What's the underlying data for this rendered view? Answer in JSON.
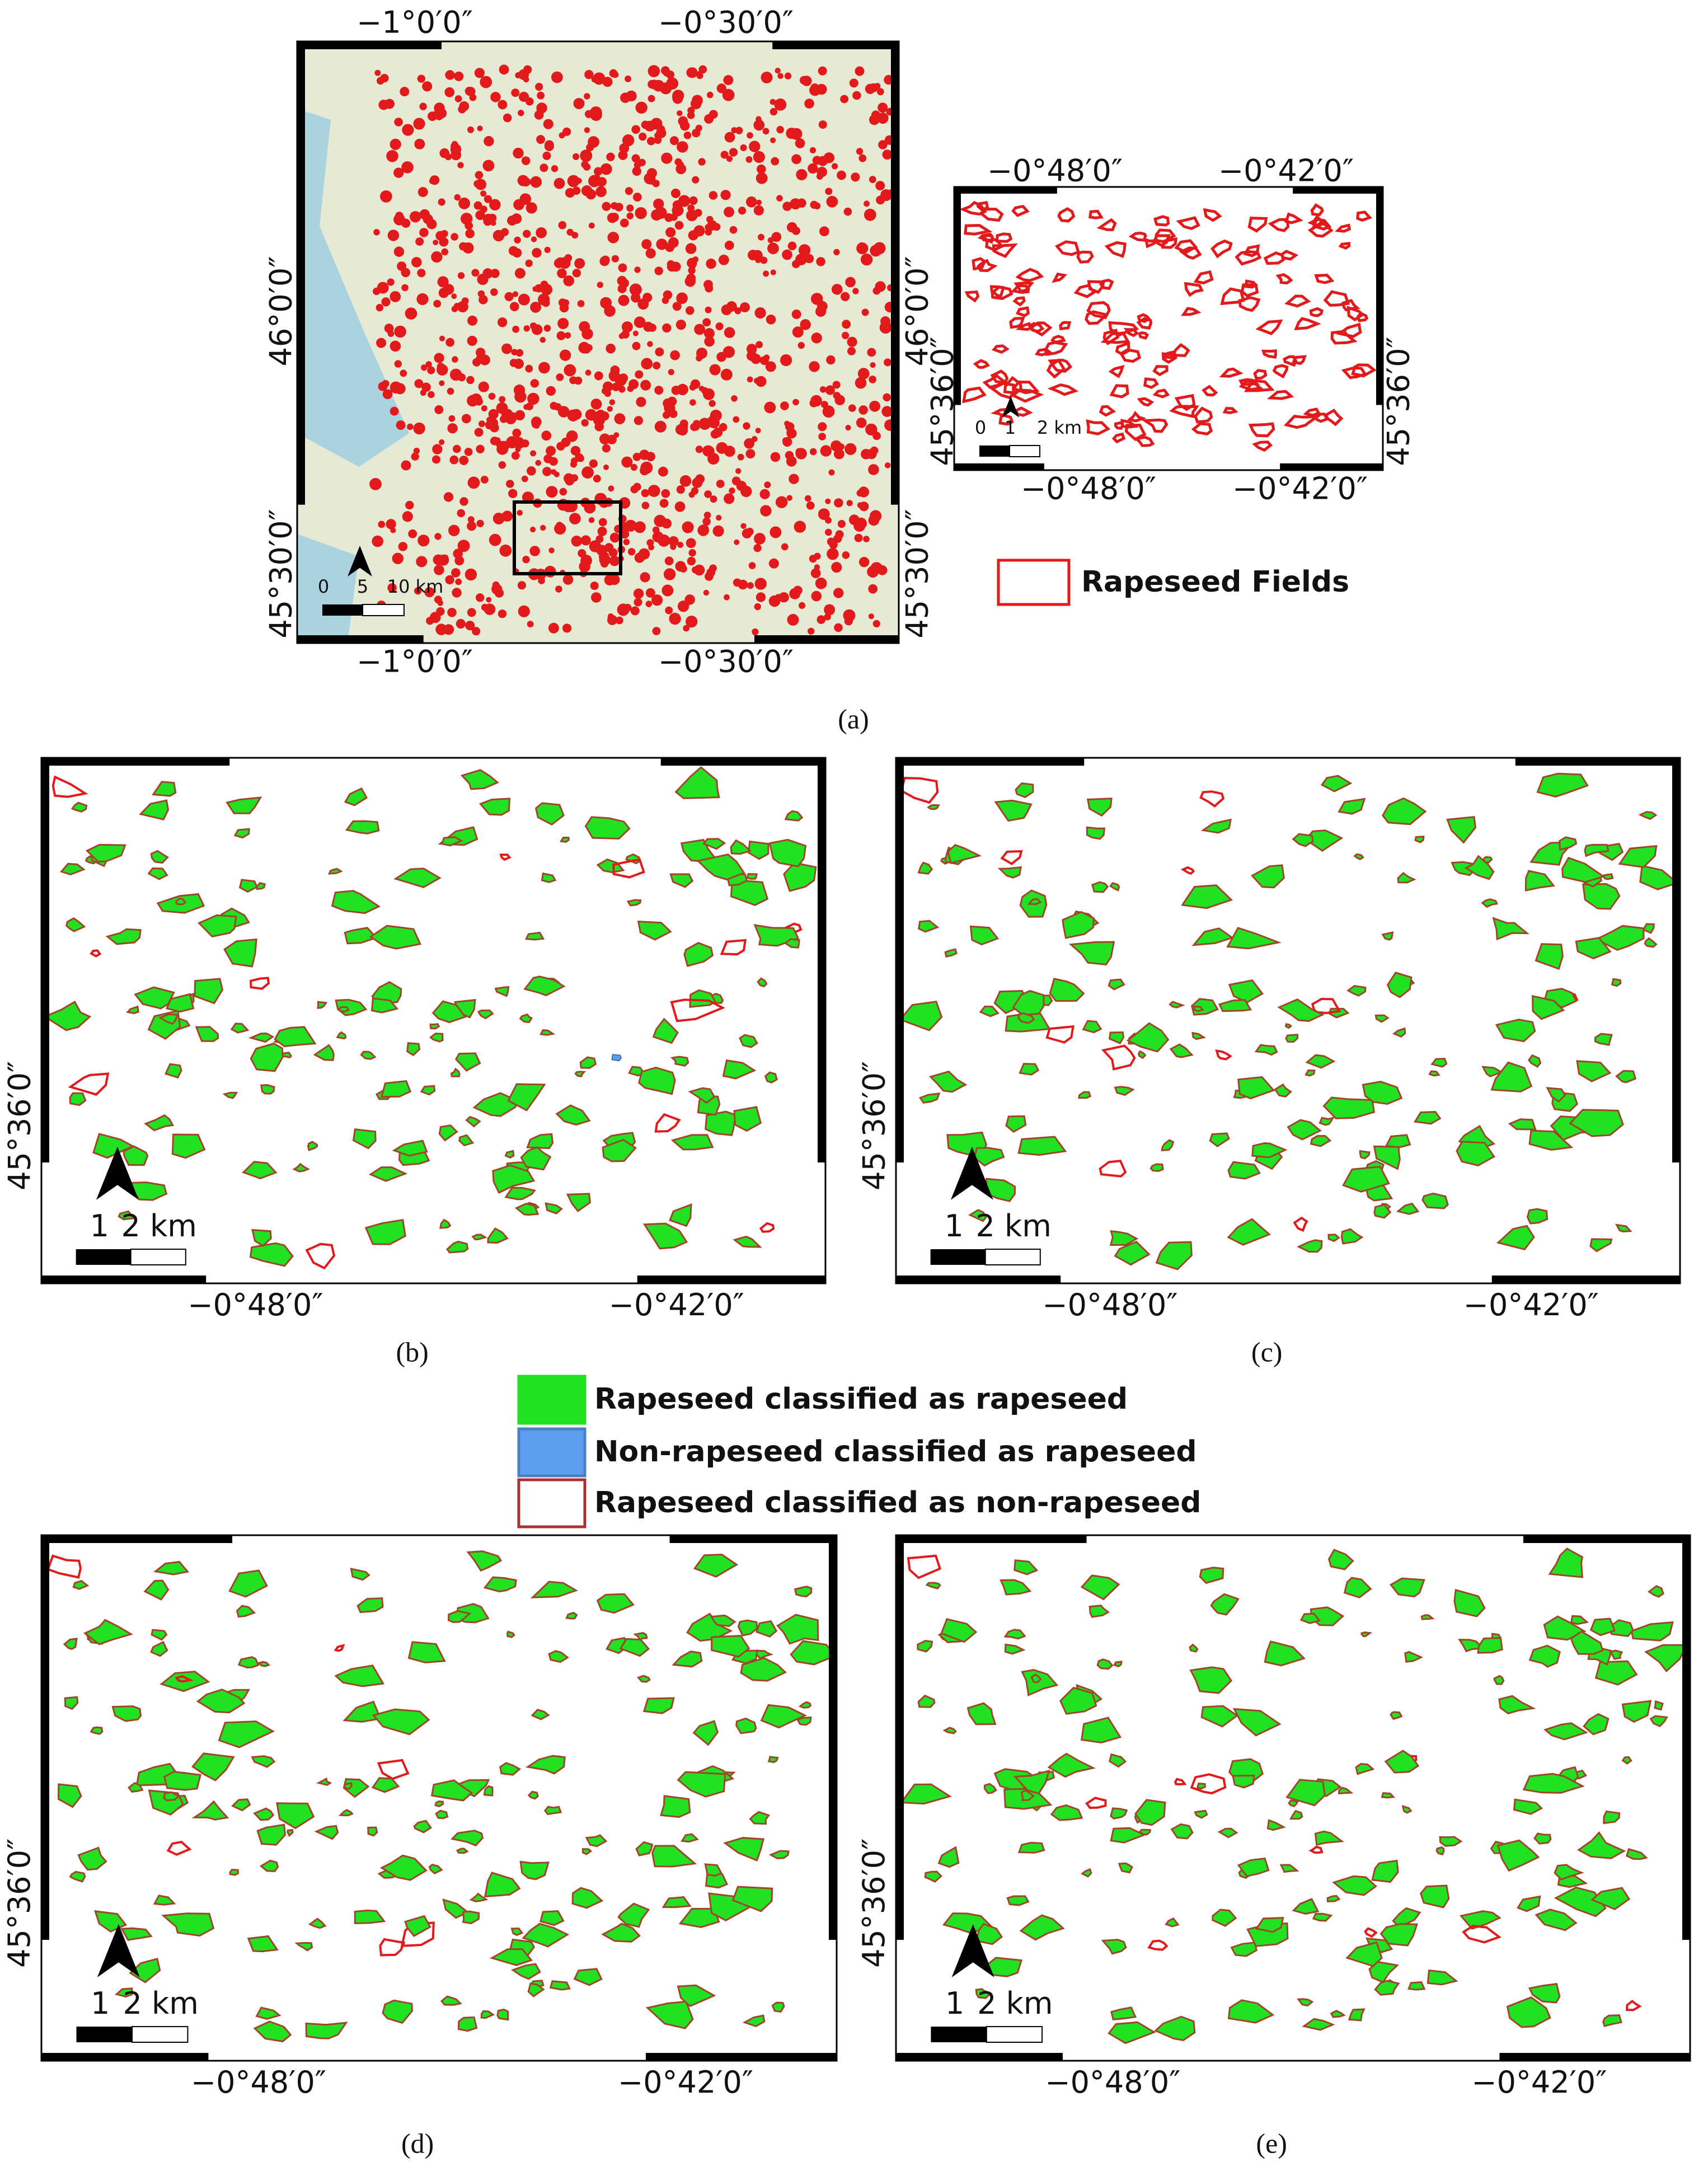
{
  "panel_a": {
    "label": "(a)",
    "top_ticks": [
      "−1°0′0″",
      "−0°30′0″"
    ],
    "bottom_ticks": [
      "−1°0′0″",
      "−0°30′0″"
    ],
    "left_ticks": [
      "46°0′0″",
      "45°30′0″"
    ],
    "right_ticks": [
      "46°0′0″",
      "45°30′0″"
    ],
    "scale": [
      "0",
      "5",
      "10 km"
    ]
  },
  "inset": {
    "top_ticks": [
      "−0°48′0″",
      "−0°42′0″"
    ],
    "bottom_ticks": [
      "−0°48′0″",
      "−0°42′0″"
    ],
    "left_tick": "45°36′0″",
    "right_tick": "45°36′0″",
    "scale": [
      "0",
      "1",
      "2 km"
    ]
  },
  "legend_a": "Rapeseed Fields",
  "panels": [
    {
      "label": "(b)",
      "left_tick": "45°36′0″",
      "bottom_ticks": [
        "−0°48′0″",
        "−0°42′0″"
      ],
      "scale": [
        "1",
        "2 km"
      ]
    },
    {
      "label": "(c)",
      "left_tick": "45°36′0″",
      "bottom_ticks": [
        "−0°48′0″",
        "−0°42′0″"
      ],
      "scale": [
        "1",
        "2 km"
      ]
    },
    {
      "label": "(d)",
      "left_tick": "45°36′0″",
      "bottom_ticks": [
        "−0°48′0″",
        "−0°42′0″"
      ],
      "scale": [
        "1",
        "2 km"
      ]
    },
    {
      "label": "(e)",
      "left_tick": "45°36′0″",
      "bottom_ticks": [
        "−0°48′0″",
        "−0°42′0″"
      ],
      "scale": [
        "1",
        "2 km"
      ]
    }
  ],
  "legend": [
    "Rapeseed classified as rapeseed",
    "Non-rapeseed classified as rapeseed",
    "Rapeseed classified as non-rapeseed"
  ]
}
